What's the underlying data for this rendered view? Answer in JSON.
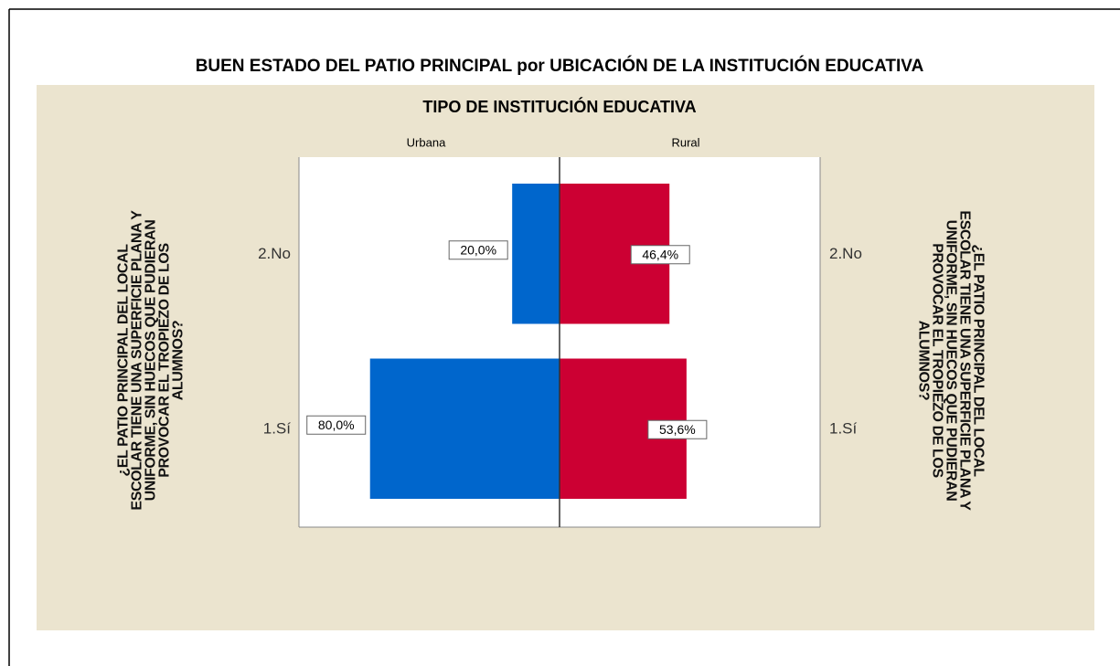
{
  "chart_data": {
    "type": "pyramid",
    "title": "BUEN ESTADO DEL PATIO PRINCIPAL por UBICACIÓN DE LA INSTITUCIÓN EDUCATIVA",
    "panel_title": "TIPO DE INSTITUCIÓN EDUCATIVA",
    "y_label": "¿EL PATIO PRINCIPAL DEL LOCAL ESCOLAR TIENE UNA SUPERFICIE PLANA Y UNIFORME, SIN HUECOS QUE PUDIERAN PROVOCAR EL TROPIEZO DE LOS ALUMNOS?",
    "categories": [
      "2.No",
      "1.Sí"
    ],
    "series": [
      {
        "name": "Urbana",
        "color": "#0066cc",
        "values": [
          20.0,
          80.0
        ],
        "value_labels": [
          "20,0%",
          "80,0%"
        ]
      },
      {
        "name": "Rural",
        "color": "#cc0033",
        "values": [
          46.4,
          53.6
        ],
        "value_labels": [
          "46,4%",
          "53,6%"
        ]
      }
    ],
    "xlim": [
      0,
      110
    ]
  }
}
